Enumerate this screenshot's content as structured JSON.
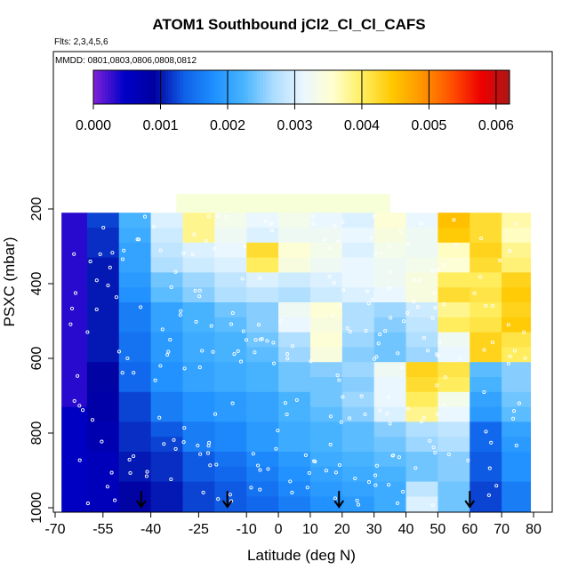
{
  "chart_data": {
    "type": "heatmap",
    "title": "ATOM1 Southbound jCl2_Cl_Cl_CAFS",
    "flights_note": "Flts: 2,3,4,5,6",
    "dates_note": "MMDD: 0801,0803,0806,0808,0812",
    "xlabel": "Latitude (deg N)",
    "ylabel": "PSXC (mbar)",
    "xlim": [
      -70,
      80
    ],
    "ylim": [
      1000,
      200
    ],
    "x_ticks": [
      -70,
      -55,
      -40,
      -25,
      -10,
      0,
      10,
      20,
      30,
      40,
      50,
      60,
      70,
      80
    ],
    "x_tick_labels": [
      "-70",
      "-55",
      "-40",
      "-25",
      "-10",
      "0",
      "10",
      "20",
      "30",
      "40",
      "50",
      "60",
      "70",
      "80"
    ],
    "y_ticks": [
      200,
      400,
      600,
      800,
      1000
    ],
    "y_tick_labels": [
      "200",
      "400",
      "600",
      "800",
      "1000"
    ],
    "colorbar": {
      "min": 0.0,
      "max": 0.0062,
      "ticks": [
        0.0,
        0.001,
        0.002,
        0.003,
        0.004,
        0.005,
        0.006
      ],
      "tick_labels": [
        "0.000",
        "0.001",
        "0.002",
        "0.003",
        "0.004",
        "0.005",
        "0.006"
      ],
      "colors": [
        "#7a20d8",
        "#0000c8",
        "#0000a0",
        "#1060e8",
        "#1e90ff",
        "#48b4ff",
        "#aadcff",
        "#eaf7ff",
        "#ffffd0",
        "#ffee60",
        "#ffc800",
        "#ff9600",
        "#ff5000",
        "#ee0000",
        "#a81818"
      ]
    },
    "pressure_levels": [
      230,
      270,
      310,
      350,
      390,
      430,
      470,
      510,
      550,
      590,
      630,
      670,
      710,
      750,
      790,
      830,
      870,
      910,
      950,
      990
    ],
    "lat_bins": [
      -70,
      -60,
      -50,
      -40,
      -30,
      -20,
      -10,
      0,
      10,
      20,
      30,
      40,
      50,
      60,
      70,
      80
    ],
    "values": [
      [
        0.0003,
        0.0012,
        0.0022,
        0.003,
        0.0038,
        0.0033,
        0.0031,
        0.0033,
        0.0031,
        0.003,
        0.0035,
        0.0031,
        0.0045,
        0.0042,
        0.0037
      ],
      [
        0.0003,
        0.0011,
        0.0021,
        0.0029,
        0.0038,
        0.0032,
        0.003,
        0.0032,
        0.0032,
        0.0031,
        0.0034,
        0.0032,
        0.0044,
        0.0042,
        0.0036
      ],
      [
        0.0003,
        0.0011,
        0.002,
        0.0028,
        0.003,
        0.0031,
        0.0042,
        0.0035,
        0.0033,
        0.003,
        0.0033,
        0.0032,
        0.0036,
        0.0043,
        0.0038
      ],
      [
        0.0003,
        0.001,
        0.002,
        0.0027,
        0.0029,
        0.003,
        0.004,
        0.0034,
        0.0032,
        0.0031,
        0.0032,
        0.0033,
        0.0035,
        0.0042,
        0.0039
      ],
      [
        0.0003,
        0.001,
        0.0019,
        0.0024,
        0.0026,
        0.0028,
        0.003,
        0.0029,
        0.003,
        0.0031,
        0.0032,
        0.0034,
        0.004,
        0.004,
        0.0043
      ],
      [
        0.0003,
        0.001,
        0.0018,
        0.0023,
        0.0025,
        0.0027,
        0.0028,
        0.0027,
        0.0029,
        0.003,
        0.0031,
        0.0034,
        0.0042,
        0.0041,
        0.0044
      ],
      [
        0.0003,
        0.001,
        0.0016,
        0.002,
        0.0022,
        0.0024,
        0.0025,
        0.0032,
        0.0035,
        0.0027,
        0.0026,
        0.0029,
        0.0038,
        0.004,
        0.0043
      ],
      [
        0.0003,
        0.001,
        0.0016,
        0.002,
        0.0022,
        0.0023,
        0.0025,
        0.0031,
        0.0034,
        0.0027,
        0.0025,
        0.0028,
        0.004,
        0.0041,
        0.0044
      ],
      [
        0.0003,
        0.001,
        0.0015,
        0.0019,
        0.0021,
        0.0022,
        0.0024,
        0.0027,
        0.0035,
        0.0026,
        0.0024,
        0.0027,
        0.0032,
        0.0043,
        0.0041
      ],
      [
        0.0003,
        0.001,
        0.0015,
        0.0019,
        0.0021,
        0.0022,
        0.0023,
        0.0026,
        0.0034,
        0.0025,
        0.0024,
        0.0026,
        0.0031,
        0.0043,
        0.004
      ],
      [
        0.0003,
        0.0009,
        0.0014,
        0.0018,
        0.002,
        0.0021,
        0.0022,
        0.0024,
        0.0025,
        0.0026,
        0.0032,
        0.0043,
        0.0041,
        0.0023,
        0.0025
      ],
      [
        0.0003,
        0.0009,
        0.0014,
        0.0018,
        0.002,
        0.0021,
        0.0022,
        0.0024,
        0.0024,
        0.0025,
        0.0031,
        0.0042,
        0.004,
        0.0022,
        0.0025
      ],
      [
        0.0003,
        0.0008,
        0.0012,
        0.0016,
        0.0018,
        0.0019,
        0.002,
        0.0022,
        0.0024,
        0.0026,
        0.0031,
        0.004,
        0.0033,
        0.002,
        0.0024
      ],
      [
        0.0005,
        0.0008,
        0.0012,
        0.0016,
        0.0018,
        0.0019,
        0.002,
        0.0022,
        0.0023,
        0.0025,
        0.003,
        0.0038,
        0.0031,
        0.0019,
        0.0023
      ],
      [
        0.0005,
        0.0007,
        0.0011,
        0.0013,
        0.0016,
        0.0017,
        0.0019,
        0.0021,
        0.0022,
        0.0023,
        0.0025,
        0.0027,
        0.0028,
        0.0014,
        0.002
      ],
      [
        0.0005,
        0.0007,
        0.0011,
        0.0012,
        0.0016,
        0.0017,
        0.0019,
        0.0021,
        0.0022,
        0.0023,
        0.0024,
        0.0026,
        0.0027,
        0.0014,
        0.0019
      ],
      [
        0.0005,
        0.0006,
        0.001,
        0.0011,
        0.0013,
        0.0015,
        0.0017,
        0.0019,
        0.0021,
        0.0022,
        0.0023,
        0.0024,
        0.0025,
        0.0013,
        0.0018
      ],
      [
        0.0005,
        0.0006,
        0.001,
        0.0011,
        0.0013,
        0.0014,
        0.0016,
        0.0018,
        0.002,
        0.0021,
        0.0022,
        0.0024,
        0.0025,
        0.0013,
        0.0018
      ],
      [
        0.0005,
        0.0006,
        0.0009,
        0.001,
        0.0012,
        0.0013,
        0.0015,
        0.0017,
        0.0019,
        0.002,
        0.0021,
        0.0028,
        0.0024,
        0.0012,
        0.0016
      ],
      [
        0.0005,
        0.0006,
        0.0009,
        0.001,
        0.0012,
        0.0013,
        0.0014,
        0.0016,
        0.0018,
        0.0019,
        0.0021,
        0.003,
        0.0024,
        0.0012,
        0.0016
      ]
    ],
    "profile_markers_lat": [
      -43,
      -16,
      19,
      60
    ]
  }
}
